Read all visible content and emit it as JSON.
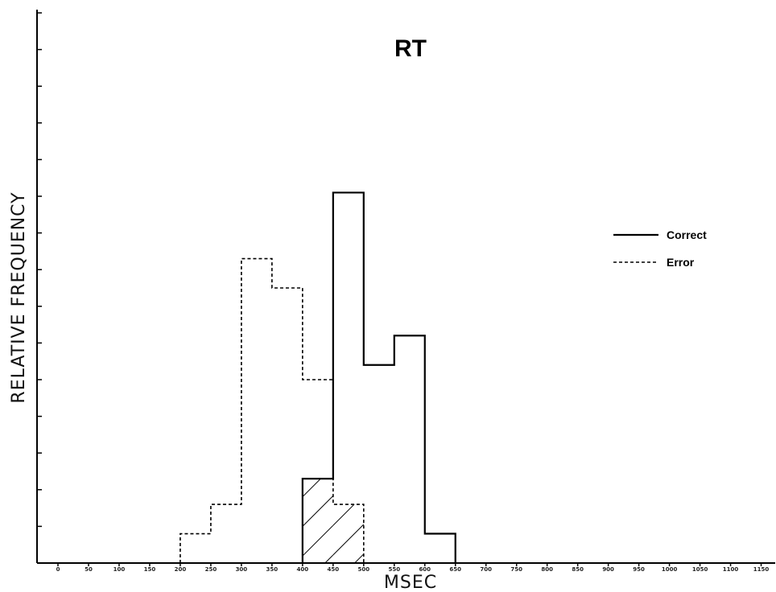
{
  "chart_data": {
    "type": "bar",
    "title": "RT",
    "xlabel": "MSEC",
    "ylabel": "RELATIVE FREQUENCY",
    "x_ticks": [
      "0",
      "50",
      "100",
      "150",
      "200",
      "250",
      "300",
      "350",
      "400",
      "450",
      "500",
      "550",
      "600",
      "650",
      "700",
      "750",
      "800",
      "850",
      "900",
      "950",
      "1000",
      "1050",
      "1100",
      "1150"
    ],
    "y_ticks": [
      "",
      "",
      "",
      "",
      "",
      "",
      "",
      "",
      "",
      "",
      "",
      "",
      "",
      "",
      "",
      ""
    ],
    "ylim": [
      0,
      15
    ],
    "bin_width": 50,
    "legend": {
      "position": "right",
      "entries": [
        {
          "name": "Correct",
          "style": "solid"
        },
        {
          "name": "Error",
          "style": "dashed"
        }
      ]
    },
    "series": [
      {
        "name": "Correct",
        "style": "solid",
        "bins": [
          {
            "start": 400,
            "value": 2.3
          },
          {
            "start": 450,
            "value": 10.1
          },
          {
            "start": 500,
            "value": 5.4
          },
          {
            "start": 550,
            "value": 6.2
          },
          {
            "start": 600,
            "value": 0.8
          }
        ]
      },
      {
        "name": "Error",
        "style": "dashed",
        "bins": [
          {
            "start": 200,
            "value": 0.8
          },
          {
            "start": 250,
            "value": 1.6
          },
          {
            "start": 300,
            "value": 8.3
          },
          {
            "start": 350,
            "value": 7.5
          },
          {
            "start": 400,
            "value": 5.0
          },
          {
            "start": 450,
            "value": 1.6
          }
        ]
      }
    ],
    "overlap_hatched": {
      "start": 400,
      "end": 500
    },
    "grid": false
  }
}
